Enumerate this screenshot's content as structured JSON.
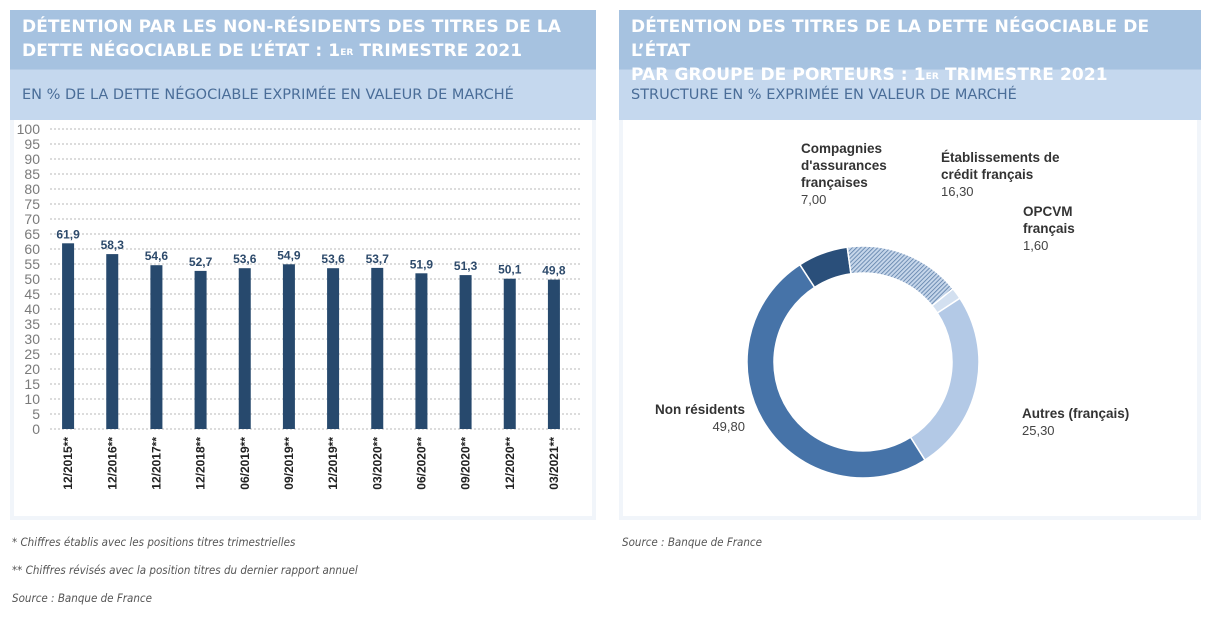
{
  "left_panel": {
    "title_line1": "DÉTENTION PAR LES NON-RÉSIDENTS DES TITRES DE LA",
    "title_line2_pre": "DETTE NÉGOCIABLE DE L’ÉTAT : 1",
    "title_sup": "ER",
    "title_line2_post": " TRIMESTRE 2021",
    "subtitle": "EN % DE LA DETTE NÉGOCIABLE EXPRIMÉE EN VALEUR DE MARCHÉ",
    "notes": [
      "* Chiffres établis avec les positions titres trimestrielles",
      "** Chiffres révisés avec la position titres du dernier rapport annuel",
      "Source : Banque de France"
    ]
  },
  "right_panel": {
    "title_line1": "DÉTENTION DES TITRES DE LA DETTE NÉGOCIABLE DE L’ÉTAT",
    "title_line2_pre": "PAR GROUPE DE PORTEURS : 1",
    "title_sup": "ER",
    "title_line2_post": " TRIMESTRE 2021",
    "subtitle": "STRUCTURE EN % EXPRIMÉE EN VALEUR DE MARCHÉ",
    "notes": [
      "Source : Banque de France"
    ]
  },
  "chart_data": [
    {
      "type": "bar",
      "title": "Détention par les non-résidents des titres de la dette négociable de l’État : 1er trimestre 2021",
      "subtitle": "En % de la dette négociable exprimée en valeur de marché",
      "categories": [
        "12/2015**",
        "12/2016**",
        "12/2017**",
        "12/2018**",
        "06/2019**",
        "09/2019**",
        "12/2019**",
        "03/2020**",
        "06/2020**",
        "09/2020**",
        "12/2020**",
        "03/2021**"
      ],
      "values": [
        61.9,
        58.3,
        54.6,
        52.7,
        53.6,
        54.9,
        53.6,
        53.7,
        51.9,
        51.3,
        50.1,
        49.8
      ],
      "value_labels": [
        "61,9",
        "58,3",
        "54,6",
        "52,7",
        "53,6",
        "54,9",
        "53,6",
        "53,7",
        "51,9",
        "51,3",
        "50,1",
        "49,8"
      ],
      "xlabel": "",
      "ylabel": "",
      "ylim": [
        0,
        100
      ],
      "yticks": [
        "0",
        "5",
        "10",
        "15",
        "20",
        "25",
        "30",
        "35",
        "40",
        "45",
        "50",
        "55",
        "60",
        "65",
        "70",
        "75",
        "80",
        "85",
        "90",
        "95",
        "100"
      ],
      "grid": true,
      "bar_color": "#27496d"
    },
    {
      "type": "pie",
      "donut": true,
      "title": "Détention des titres de la dette négociable de l’État par groupe de porteurs : 1er trimestre 2021",
      "subtitle": "Structure en % exprimée en valeur de marché",
      "slices": [
        {
          "name": "Compagnies d'assurances françaises",
          "label_lines": [
            "Compagnies",
            "d'assurances",
            "françaises"
          ],
          "value": 7.0,
          "value_label": "7,00",
          "color": "#2a4f7a",
          "pattern": false
        },
        {
          "name": "Établissements de crédit français",
          "label_lines": [
            "Établissements de",
            "crédit français"
          ],
          "value": 16.3,
          "value_label": "16,30",
          "color": "#8fa9c9",
          "pattern": true
        },
        {
          "name": "OPCVM français",
          "label_lines": [
            "OPCVM",
            "français"
          ],
          "value": 1.6,
          "value_label": "1,60",
          "color": "#d3e0f0",
          "pattern": false
        },
        {
          "name": "Autres (français)",
          "label_lines": [
            "Autres (français)"
          ],
          "value": 25.3,
          "value_label": "25,30",
          "color": "#b3c9e6",
          "pattern": false
        },
        {
          "name": "Non résidents",
          "label_lines": [
            "Non résidents"
          ],
          "value": 49.8,
          "value_label": "49,80",
          "color": "#4673a8",
          "pattern": false
        }
      ]
    }
  ]
}
